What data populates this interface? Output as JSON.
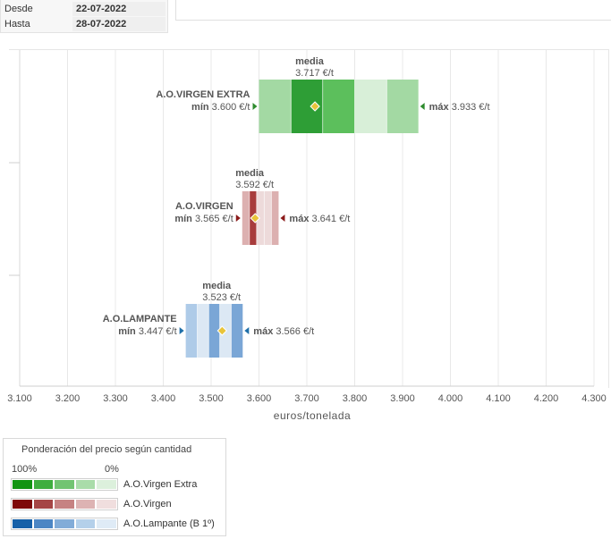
{
  "filters": {
    "desde_label": "Desde",
    "desde_value": "22-07-2022",
    "hasta_label": "Hasta",
    "hasta_value": "28-07-2022"
  },
  "chart_data": {
    "type": "range",
    "xlabel": "euros/tonelada",
    "xlim": [
      3100,
      4300
    ],
    "ticks": [
      "3.100",
      "3.200",
      "3.300",
      "3.400",
      "3.500",
      "3.600",
      "3.700",
      "3.800",
      "3.900",
      "4.000",
      "4.100",
      "4.200",
      "4.300"
    ],
    "grid": true,
    "series": [
      {
        "name": "A.O.VIRGEN EXTRA",
        "min": 3600,
        "min_label": "mín",
        "min_text": "3.600 €/t",
        "max": 3933,
        "max_label": "máx",
        "max_text": "3.933 €/t",
        "mean": 3717,
        "mean_label": "media",
        "mean_text": "3.717 €/t",
        "bands": [
          3600,
          3667,
          3733,
          3800,
          3867,
          3933
        ],
        "band_weights": [
          2,
          4,
          3,
          1,
          2
        ],
        "colors": [
          "#006400",
          "#2e9e36",
          "#5cbf5c",
          "#a3d9a3",
          "#d8efd8"
        ],
        "marker_color": "#2e8b2e"
      },
      {
        "name": "A.O.VIRGEN",
        "min": 3565,
        "min_label": "mín",
        "min_text": "3.565 €/t",
        "max": 3641,
        "max_label": "máx",
        "max_text": "3.641 €/t",
        "mean": 3592,
        "mean_label": "media",
        "mean_text": "3.592 €/t",
        "bands": [
          3565,
          3580,
          3595,
          3611,
          3626,
          3641
        ],
        "band_weights": [
          2,
          4,
          1,
          1,
          2
        ],
        "colors": [
          "#7a0000",
          "#a83c3c",
          "#c77f7f",
          "#dcb0b0",
          "#eddada"
        ],
        "marker_color": "#8b1a1a"
      },
      {
        "name": "A.O.LAMPANTE",
        "min": 3447,
        "min_label": "mín",
        "min_text": "3.447 €/t",
        "max": 3566,
        "max_label": "máx",
        "max_text": "3.566 €/t",
        "mean": 3523,
        "mean_label": "media",
        "mean_text": "3.523 €/t",
        "bands": [
          3447,
          3471,
          3495,
          3518,
          3542,
          3566
        ],
        "band_weights": [
          2,
          1,
          3,
          1,
          3
        ],
        "colors": [
          "#1a5ea8",
          "#3d7bbf",
          "#7aa6d6",
          "#aecbe8",
          "#dce8f4"
        ],
        "marker_color": "#1f6fa8"
      }
    ],
    "mean_marker_color": "#e8c43a"
  },
  "legend": {
    "title": "Ponderación del precio según cantidad",
    "p100": "100%",
    "p0": "0%",
    "items": [
      {
        "name": "A.O.Virgen Extra",
        "colors": [
          "#129412",
          "#3fae3f",
          "#72c472",
          "#a9dca9",
          "#dcf0dc"
        ]
      },
      {
        "name": "A.O.Virgen",
        "colors": [
          "#7e0a0a",
          "#a54545",
          "#c68282",
          "#ddb3b3",
          "#f0dede"
        ]
      },
      {
        "name": "A.O.Lampante (B 1º)",
        "colors": [
          "#1660a8",
          "#4c86c4",
          "#82acd8",
          "#b4d0ea",
          "#dfebf6"
        ]
      }
    ]
  }
}
